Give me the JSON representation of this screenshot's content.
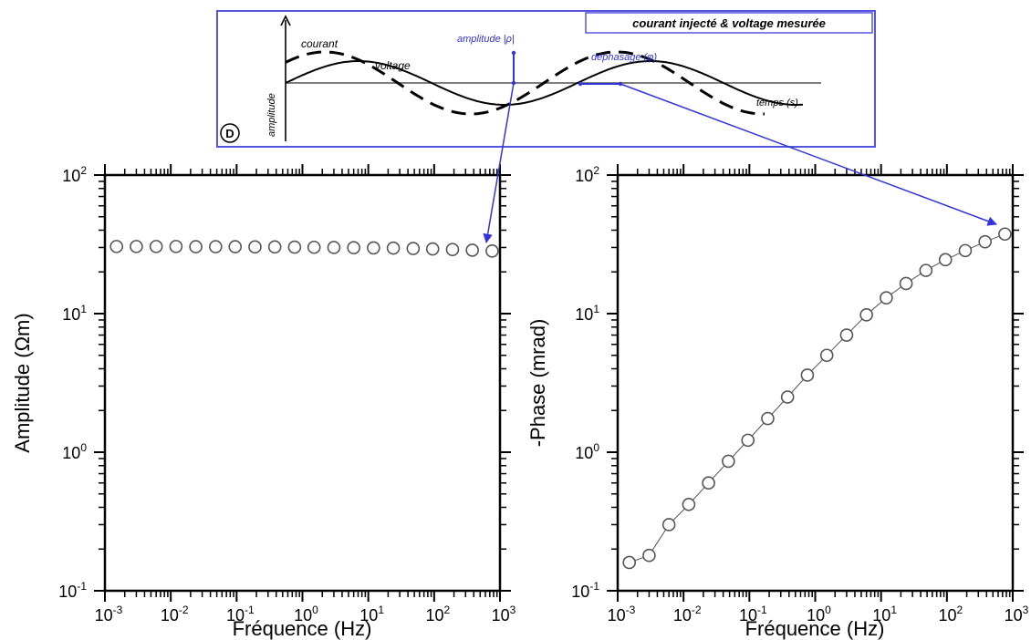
{
  "colors": {
    "axis": "#000000",
    "marker": "#555555",
    "annotation_blue": "#3333dd",
    "inset_border": "#5555dd"
  },
  "inset": {
    "title": "courant injecté & voltage mesurée",
    "y_label": "amplitude",
    "x_label": "temps (s)",
    "label_courant": "courant",
    "label_voltage": "voltage",
    "label_amplitude": "amplitude |ρ|",
    "label_dephasage": "déphasage (φ)",
    "panel_letter": "D"
  },
  "chart_data": [
    {
      "type": "scatter",
      "ylabel": "Amplitude (Ωm)",
      "xlabel": "Fréquence (Hz)",
      "xscale": "log",
      "yscale": "log",
      "xlim": [
        0.001,
        1000
      ],
      "ylim": [
        0.1,
        100
      ],
      "x_ticks": [
        "10-3",
        "10-2",
        "10-1",
        "100",
        "101",
        "102",
        "103"
      ],
      "y_ticks": [
        "10-1",
        "100",
        "101",
        "102"
      ],
      "series": [
        {
          "x": [
            0.0015,
            0.003,
            0.006,
            0.012,
            0.024,
            0.048,
            0.095,
            0.19,
            0.38,
            0.76,
            1.5,
            3,
            6,
            12,
            24,
            48,
            95,
            190,
            380,
            760
          ],
          "y": [
            30.5,
            30.5,
            30.5,
            30.5,
            30.4,
            30.4,
            30.4,
            30.3,
            30.3,
            30.2,
            30.1,
            30,
            29.9,
            29.8,
            29.7,
            29.5,
            29.3,
            29,
            28.7,
            28.3
          ]
        }
      ]
    },
    {
      "type": "line",
      "ylabel": "-Phase (mrad)",
      "xlabel": "Fréquence (Hz)",
      "xscale": "log",
      "yscale": "log",
      "xlim": [
        0.001,
        1000
      ],
      "ylim": [
        0.1,
        100
      ],
      "x_ticks": [
        "10-3",
        "10-2",
        "10-1",
        "100",
        "101",
        "102",
        "103"
      ],
      "y_ticks": [
        "10-1",
        "100",
        "101",
        "102"
      ],
      "series": [
        {
          "x": [
            0.0015,
            0.003,
            0.006,
            0.012,
            0.024,
            0.048,
            0.095,
            0.19,
            0.38,
            0.76,
            1.5,
            3,
            6,
            12,
            24,
            48,
            95,
            190,
            380,
            760
          ],
          "y": [
            0.16,
            0.18,
            0.3,
            0.42,
            0.6,
            0.86,
            1.22,
            1.75,
            2.5,
            3.6,
            5,
            7,
            9.8,
            13,
            16.5,
            20.5,
            24.5,
            28.5,
            33,
            37.5
          ]
        }
      ]
    }
  ]
}
